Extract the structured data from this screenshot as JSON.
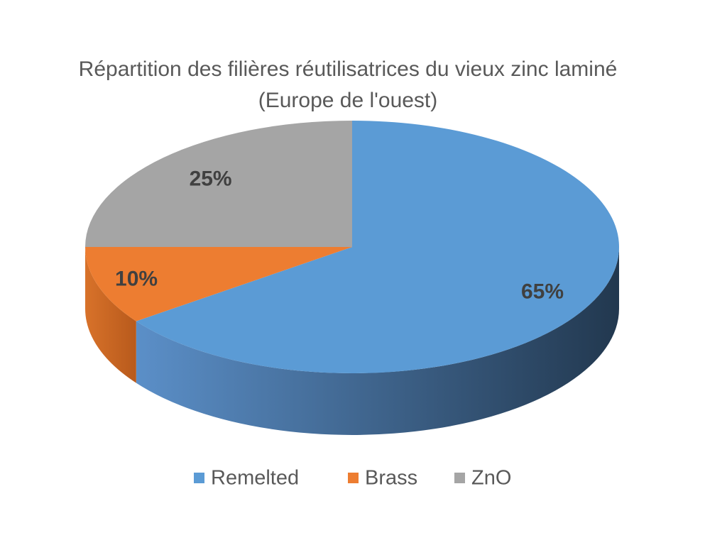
{
  "chart_data": {
    "type": "pie3d",
    "title": "Répartition des filières réutilisatrices du vieux zinc laminé (Europe de l'ouest)",
    "categories": [
      "Remelted",
      "Brass",
      "ZnO"
    ],
    "values": [
      65,
      10,
      25
    ],
    "value_labels": [
      "65%",
      "10%",
      "25%"
    ],
    "colors": [
      "#5b9bd5",
      "#ed7d31",
      "#a5a5a5"
    ],
    "legend": "bottom"
  }
}
